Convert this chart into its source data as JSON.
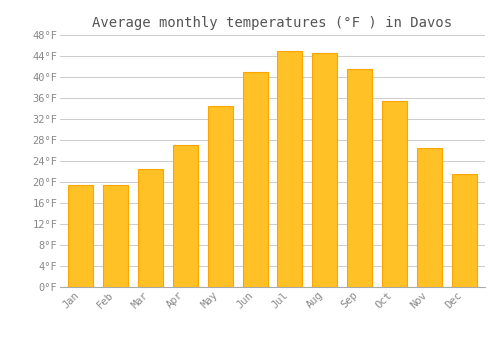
{
  "title": "Average monthly temperatures (°F ) in Davos",
  "months": [
    "Jan",
    "Feb",
    "Mar",
    "Apr",
    "May",
    "Jun",
    "Jul",
    "Aug",
    "Sep",
    "Oct",
    "Nov",
    "Dec"
  ],
  "values": [
    19.4,
    19.4,
    22.5,
    27.0,
    34.5,
    41.0,
    45.0,
    44.5,
    41.5,
    35.5,
    26.5,
    21.5
  ],
  "bar_color": "#FFC125",
  "bar_edge_color": "#FFA500",
  "background_color": "#FFFFFF",
  "grid_color": "#CCCCCC",
  "tick_label_color": "#888888",
  "title_color": "#555555",
  "ylim": [
    0,
    48
  ],
  "ytick_step": 4,
  "title_fontsize": 10,
  "tick_fontsize": 7.5,
  "figsize": [
    5.0,
    3.5
  ],
  "dpi": 100
}
